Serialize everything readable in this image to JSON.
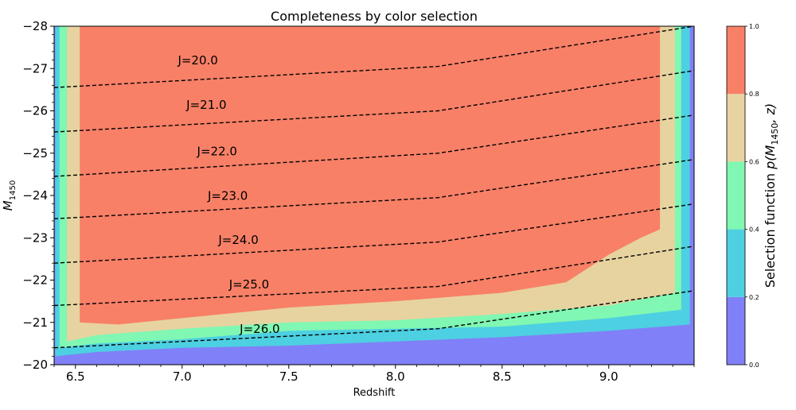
{
  "chart_data": {
    "type": "heatmap",
    "title": "Completeness by color selection",
    "xlabel": "Redshift",
    "ylabel": {
      "base": "M",
      "sub": "1450"
    },
    "xlim": [
      6.4,
      9.4
    ],
    "ylim": [
      -20,
      -28
    ],
    "x_ticks": [
      6.5,
      7.0,
      7.5,
      8.0,
      8.5,
      9.0
    ],
    "x_tick_labels": [
      "6.5",
      "7.0",
      "7.5",
      "8.0",
      "8.5",
      "9.0"
    ],
    "y_ticks": [
      -20,
      -21,
      -22,
      -23,
      -24,
      -25,
      -26,
      -27,
      -28
    ],
    "y_tick_labels": [
      "−20",
      "−21",
      "−22",
      "−23",
      "−24",
      "−25",
      "−26",
      "−27",
      "−28"
    ],
    "grid": false,
    "colorbar": {
      "label_prefix": "Selection function ",
      "label_func": "p(M",
      "label_sub": "1450",
      "label_suffix": ", z)",
      "levels": [
        0.0,
        0.2,
        0.4,
        0.6,
        0.8,
        1.0
      ],
      "tick_labels": [
        "0.0",
        "0.2",
        "0.4",
        "0.6",
        "0.8",
        "1.0"
      ],
      "colors": [
        "#8080f8",
        "#4dd0e1",
        "#80f7b2",
        "#e7d3a0",
        "#f88067"
      ]
    },
    "bands": [
      {
        "level_min": 0.2,
        "color": "#4dd0e1",
        "left": 6.405,
        "right": 9.38,
        "bottom": [
          [
            6.4,
            -20.2
          ],
          [
            6.6,
            -20.3
          ],
          [
            7.0,
            -20.4
          ],
          [
            7.5,
            -20.45
          ],
          [
            8.0,
            -20.55
          ],
          [
            8.5,
            -20.65
          ],
          [
            9.0,
            -20.8
          ],
          [
            9.4,
            -20.95
          ]
        ]
      },
      {
        "level_min": 0.4,
        "color": "#80f7b2",
        "left": 6.425,
        "right": 9.34,
        "bottom": [
          [
            6.4,
            -20.4
          ],
          [
            6.6,
            -20.5
          ],
          [
            7.0,
            -20.6
          ],
          [
            7.5,
            -20.8
          ],
          [
            8.0,
            -20.85
          ],
          [
            8.5,
            -20.9
          ],
          [
            9.0,
            -21.1
          ],
          [
            9.4,
            -21.3
          ]
        ]
      },
      {
        "level_min": 0.6,
        "color": "#e7d3a0",
        "left": 6.46,
        "right": 9.31,
        "bottom": [
          [
            6.4,
            -20.55
          ],
          [
            6.6,
            -20.7
          ],
          [
            7.0,
            -20.85
          ],
          [
            7.5,
            -21.0
          ],
          [
            8.0,
            -21.05
          ],
          [
            8.5,
            -21.2
          ],
          [
            9.0,
            -21.4
          ],
          [
            9.4,
            -21.7
          ]
        ]
      },
      {
        "level_min": 0.8,
        "color": "#f88067",
        "left": 6.52,
        "right": 9.24,
        "bottom": [
          [
            6.52,
            -21.0
          ],
          [
            6.7,
            -20.95
          ],
          [
            7.0,
            -21.1
          ],
          [
            7.5,
            -21.35
          ],
          [
            8.0,
            -21.5
          ],
          [
            8.5,
            -21.7
          ],
          [
            8.8,
            -21.95
          ],
          [
            9.0,
            -22.6
          ],
          [
            9.15,
            -23.0
          ],
          [
            9.24,
            -23.2
          ]
        ]
      }
    ],
    "contour_lines": [
      {
        "label": "J=20.0",
        "label_x": 6.98,
        "label_y": -27.1,
        "points": [
          [
            6.4,
            -26.55
          ],
          [
            8.2,
            -27.05
          ],
          [
            9.4,
            -28.0
          ]
        ]
      },
      {
        "label": "J=21.0",
        "label_x": 7.02,
        "label_y": -26.05,
        "points": [
          [
            6.4,
            -25.5
          ],
          [
            8.2,
            -26.0
          ],
          [
            9.4,
            -26.95
          ]
        ]
      },
      {
        "label": "J=22.0",
        "label_x": 7.07,
        "label_y": -24.95,
        "points": [
          [
            6.4,
            -24.45
          ],
          [
            8.2,
            -25.0
          ],
          [
            9.4,
            -25.9
          ]
        ]
      },
      {
        "label": "J=23.0",
        "label_x": 7.12,
        "label_y": -23.9,
        "points": [
          [
            6.4,
            -23.45
          ],
          [
            8.2,
            -23.95
          ],
          [
            9.4,
            -24.85
          ]
        ]
      },
      {
        "label": "J=24.0",
        "label_x": 7.17,
        "label_y": -22.85,
        "points": [
          [
            6.4,
            -22.4
          ],
          [
            8.2,
            -22.9
          ],
          [
            9.4,
            -23.8
          ]
        ]
      },
      {
        "label": "J=25.0",
        "label_x": 7.22,
        "label_y": -21.8,
        "points": [
          [
            6.4,
            -21.4
          ],
          [
            8.2,
            -21.85
          ],
          [
            9.4,
            -22.8
          ]
        ]
      },
      {
        "label": "J=26.0",
        "label_x": 7.27,
        "label_y": -20.75,
        "points": [
          [
            6.4,
            -20.4
          ],
          [
            8.2,
            -20.85
          ],
          [
            9.4,
            -21.75
          ]
        ]
      }
    ]
  }
}
